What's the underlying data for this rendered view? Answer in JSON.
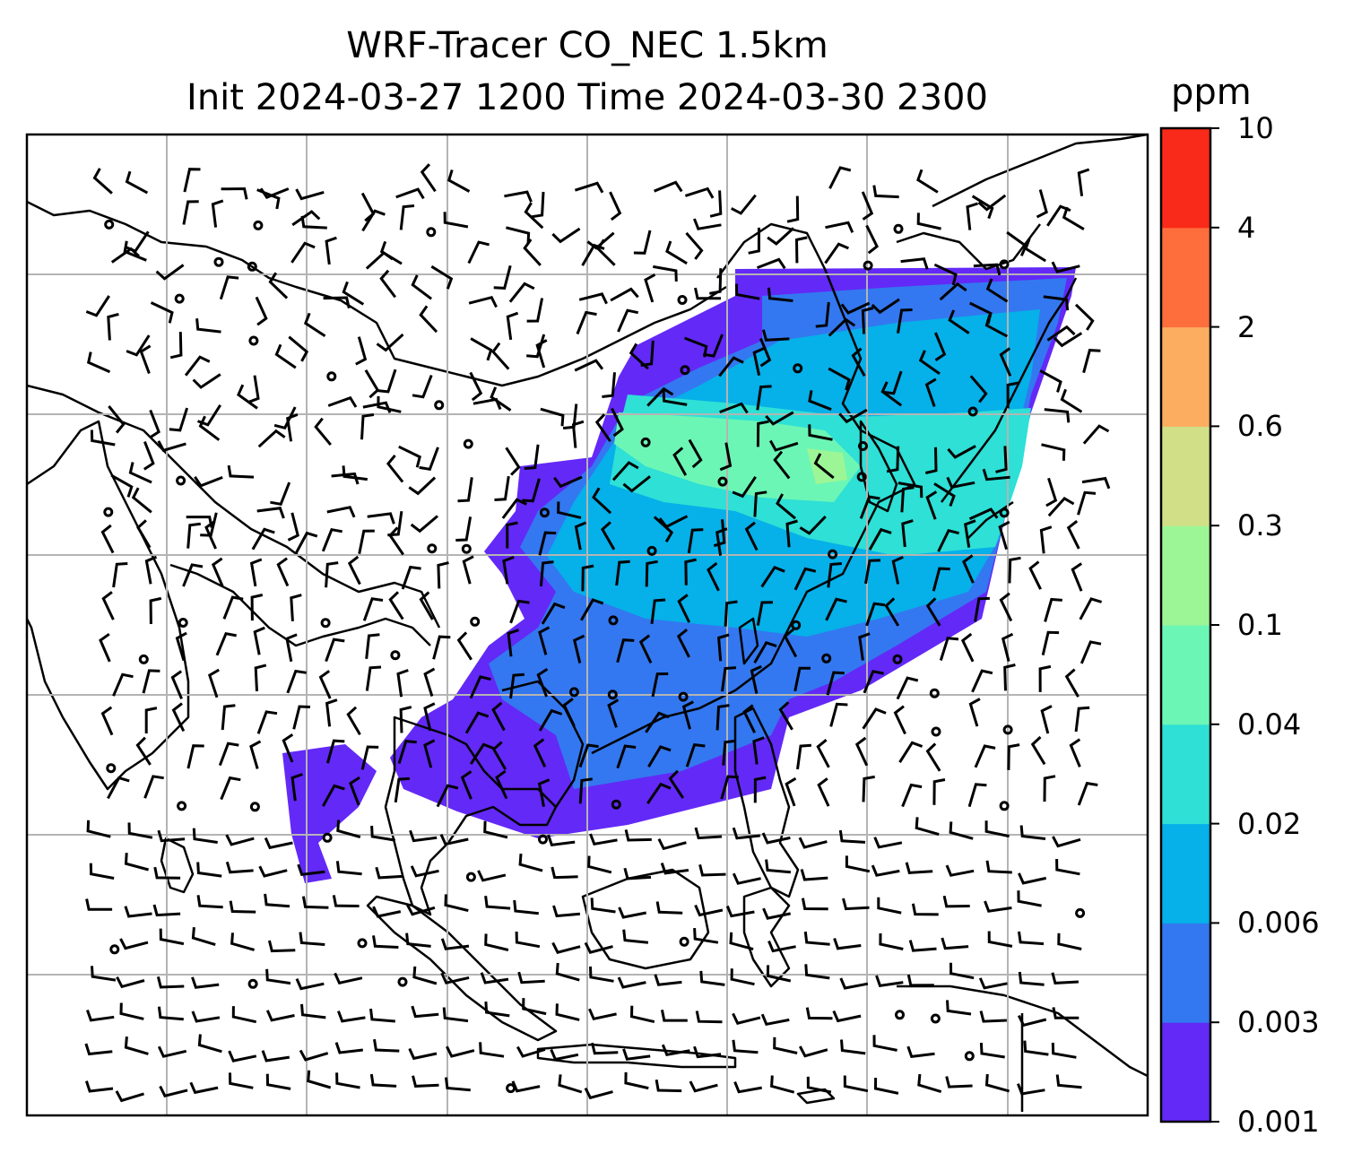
{
  "title": {
    "line1": "WRF-Tracer CO_NEC 1.5km",
    "line2": "Init 2024-03-27 1200 Time 2024-03-30 2300"
  },
  "colorbar": {
    "unit": "ppm",
    "levels": [
      "0.001",
      "0.003",
      "0.006",
      "0.02",
      "0.04",
      "0.1",
      "0.3",
      "0.6",
      "2",
      "4",
      "10"
    ],
    "colors": [
      "#6329f7",
      "#3378f0",
      "#06b0e9",
      "#2ee0d6",
      "#6cf6b5",
      "#9df695",
      "#d1df86",
      "#fcad60",
      "#fe6e3c",
      "#f92a19"
    ]
  },
  "map": {
    "gridlines": true,
    "field": "CO_NEC tracer concentration",
    "overlay": "wind barbs",
    "colors": {
      "coast": "#000000",
      "grid": "#b4b4b4"
    }
  }
}
